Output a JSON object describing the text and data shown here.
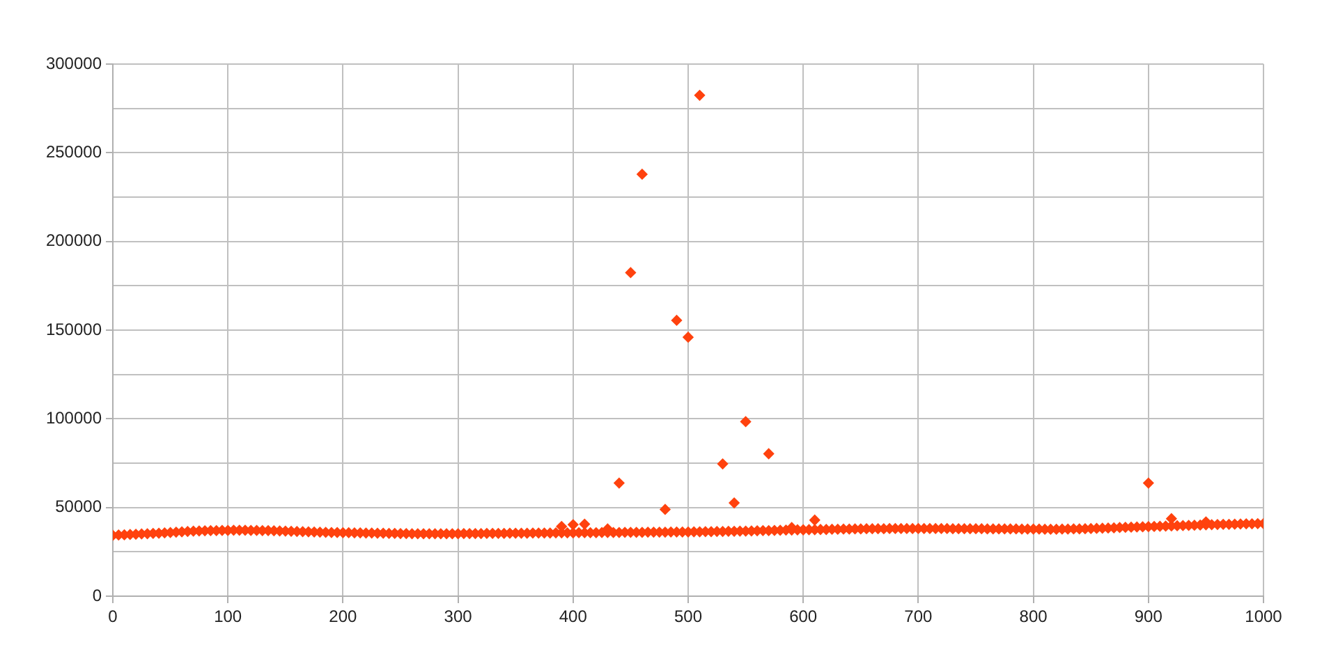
{
  "chart_data": {
    "type": "scatter",
    "color": "#ff420e",
    "marker": "diamond",
    "grid": true,
    "xlim": [
      0,
      1000
    ],
    "xticks": [
      0,
      100,
      200,
      300,
      400,
      500,
      600,
      700,
      800,
      900,
      1000
    ],
    "ylim": [
      0,
      300000
    ],
    "yticks": [
      0,
      {
        "value": 25000,
        "label": null
      },
      50000,
      {
        "value": 75000,
        "label": null
      },
      100000,
      {
        "value": 125000,
        "label": null
      },
      150000,
      {
        "value": 175000,
        "label": null
      },
      200000,
      {
        "value": 225000,
        "label": null
      },
      250000,
      {
        "value": 275000,
        "label": null
      },
      300000
    ],
    "x": [
      0,
      5,
      10,
      15,
      20,
      25,
      30,
      35,
      40,
      45,
      50,
      55,
      60,
      65,
      70,
      75,
      80,
      85,
      90,
      95,
      100,
      105,
      110,
      115,
      120,
      125,
      130,
      135,
      140,
      145,
      150,
      155,
      160,
      165,
      170,
      175,
      180,
      185,
      190,
      195,
      200,
      205,
      210,
      215,
      220,
      225,
      230,
      235,
      240,
      245,
      250,
      255,
      260,
      265,
      270,
      275,
      280,
      285,
      290,
      295,
      300,
      305,
      310,
      315,
      320,
      325,
      330,
      335,
      340,
      345,
      350,
      355,
      360,
      365,
      370,
      375,
      380,
      385,
      390,
      395,
      400,
      405,
      410,
      415,
      420,
      425,
      430,
      435,
      440,
      445,
      450,
      455,
      460,
      465,
      470,
      475,
      480,
      485,
      490,
      495,
      500,
      505,
      510,
      515,
      520,
      525,
      530,
      535,
      540,
      545,
      550,
      555,
      560,
      565,
      570,
      575,
      580,
      585,
      590,
      595,
      600,
      605,
      610,
      615,
      620,
      625,
      630,
      635,
      640,
      645,
      650,
      655,
      660,
      665,
      670,
      675,
      680,
      685,
      690,
      695,
      700,
      705,
      710,
      715,
      720,
      725,
      730,
      735,
      740,
      745,
      750,
      755,
      760,
      765,
      770,
      775,
      780,
      785,
      790,
      795,
      800,
      805,
      810,
      815,
      820,
      825,
      830,
      835,
      840,
      845,
      850,
      855,
      860,
      865,
      870,
      875,
      880,
      885,
      890,
      895,
      900,
      905,
      910,
      915,
      920,
      925,
      930,
      935,
      940,
      945,
      950,
      955,
      960,
      965,
      970,
      975,
      980,
      985,
      990,
      995,
      1000,
      390,
      400,
      410,
      430,
      440,
      450,
      460,
      480,
      490,
      500,
      510,
      530,
      540,
      550,
      570,
      590,
      610,
      900,
      920,
      950
    ],
    "values": [
      34300,
      34500,
      34600,
      34800,
      34900,
      35100,
      35200,
      35400,
      35500,
      35700,
      35900,
      36100,
      36300,
      36500,
      36700,
      36800,
      36900,
      37000,
      37000,
      37100,
      37100,
      37200,
      37200,
      37200,
      37100,
      37100,
      37000,
      37000,
      36900,
      36800,
      36700,
      36600,
      36500,
      36400,
      36300,
      36200,
      36100,
      36000,
      35900,
      35900,
      35800,
      35800,
      35700,
      35700,
      35600,
      35600,
      35500,
      35500,
      35400,
      35400,
      35300,
      35300,
      35200,
      35200,
      35200,
      35200,
      35200,
      35200,
      35200,
      35200,
      35200,
      35300,
      35300,
      35300,
      35300,
      35400,
      35400,
      35400,
      35400,
      35500,
      35500,
      35500,
      35500,
      35600,
      35600,
      35600,
      35600,
      35700,
      35700,
      35700,
      35700,
      35800,
      35800,
      35800,
      35800,
      35900,
      35900,
      35900,
      35900,
      36000,
      36000,
      36000,
      36000,
      36100,
      36100,
      36100,
      36100,
      36200,
      36200,
      36200,
      36200,
      36300,
      36300,
      36400,
      36400,
      36500,
      36500,
      36600,
      36600,
      36700,
      36700,
      36800,
      36900,
      37000,
      37000,
      37100,
      37200,
      37300,
      37300,
      37400,
      37400,
      37500,
      37500,
      37600,
      37600,
      37700,
      37700,
      37800,
      37800,
      37900,
      37900,
      38000,
      38000,
      38000,
      38000,
      38100,
      38100,
      38100,
      38100,
      38100,
      38100,
      38100,
      38100,
      38100,
      38100,
      38100,
      38000,
      38000,
      38000,
      38000,
      38000,
      38000,
      37900,
      37900,
      37900,
      37900,
      37900,
      37900,
      37800,
      37800,
      37800,
      37800,
      37700,
      37700,
      37700,
      37800,
      37800,
      37900,
      37900,
      38000,
      38100,
      38200,
      38300,
      38400,
      38500,
      38700,
      38800,
      38900,
      39000,
      39100,
      39200,
      39300,
      39400,
      39500,
      39600,
      39700,
      39800,
      39900,
      40000,
      40100,
      40200,
      40300,
      40400,
      40500,
      40500,
      40600,
      40700,
      40800,
      40800,
      40900,
      40900,
      39300,
      40300,
      40600,
      37900,
      63800,
      182400,
      237900,
      48900,
      155500,
      146000,
      282400,
      74600,
      52600,
      98400,
      80300,
      38700,
      42900,
      63800,
      43700,
      41900
    ]
  }
}
